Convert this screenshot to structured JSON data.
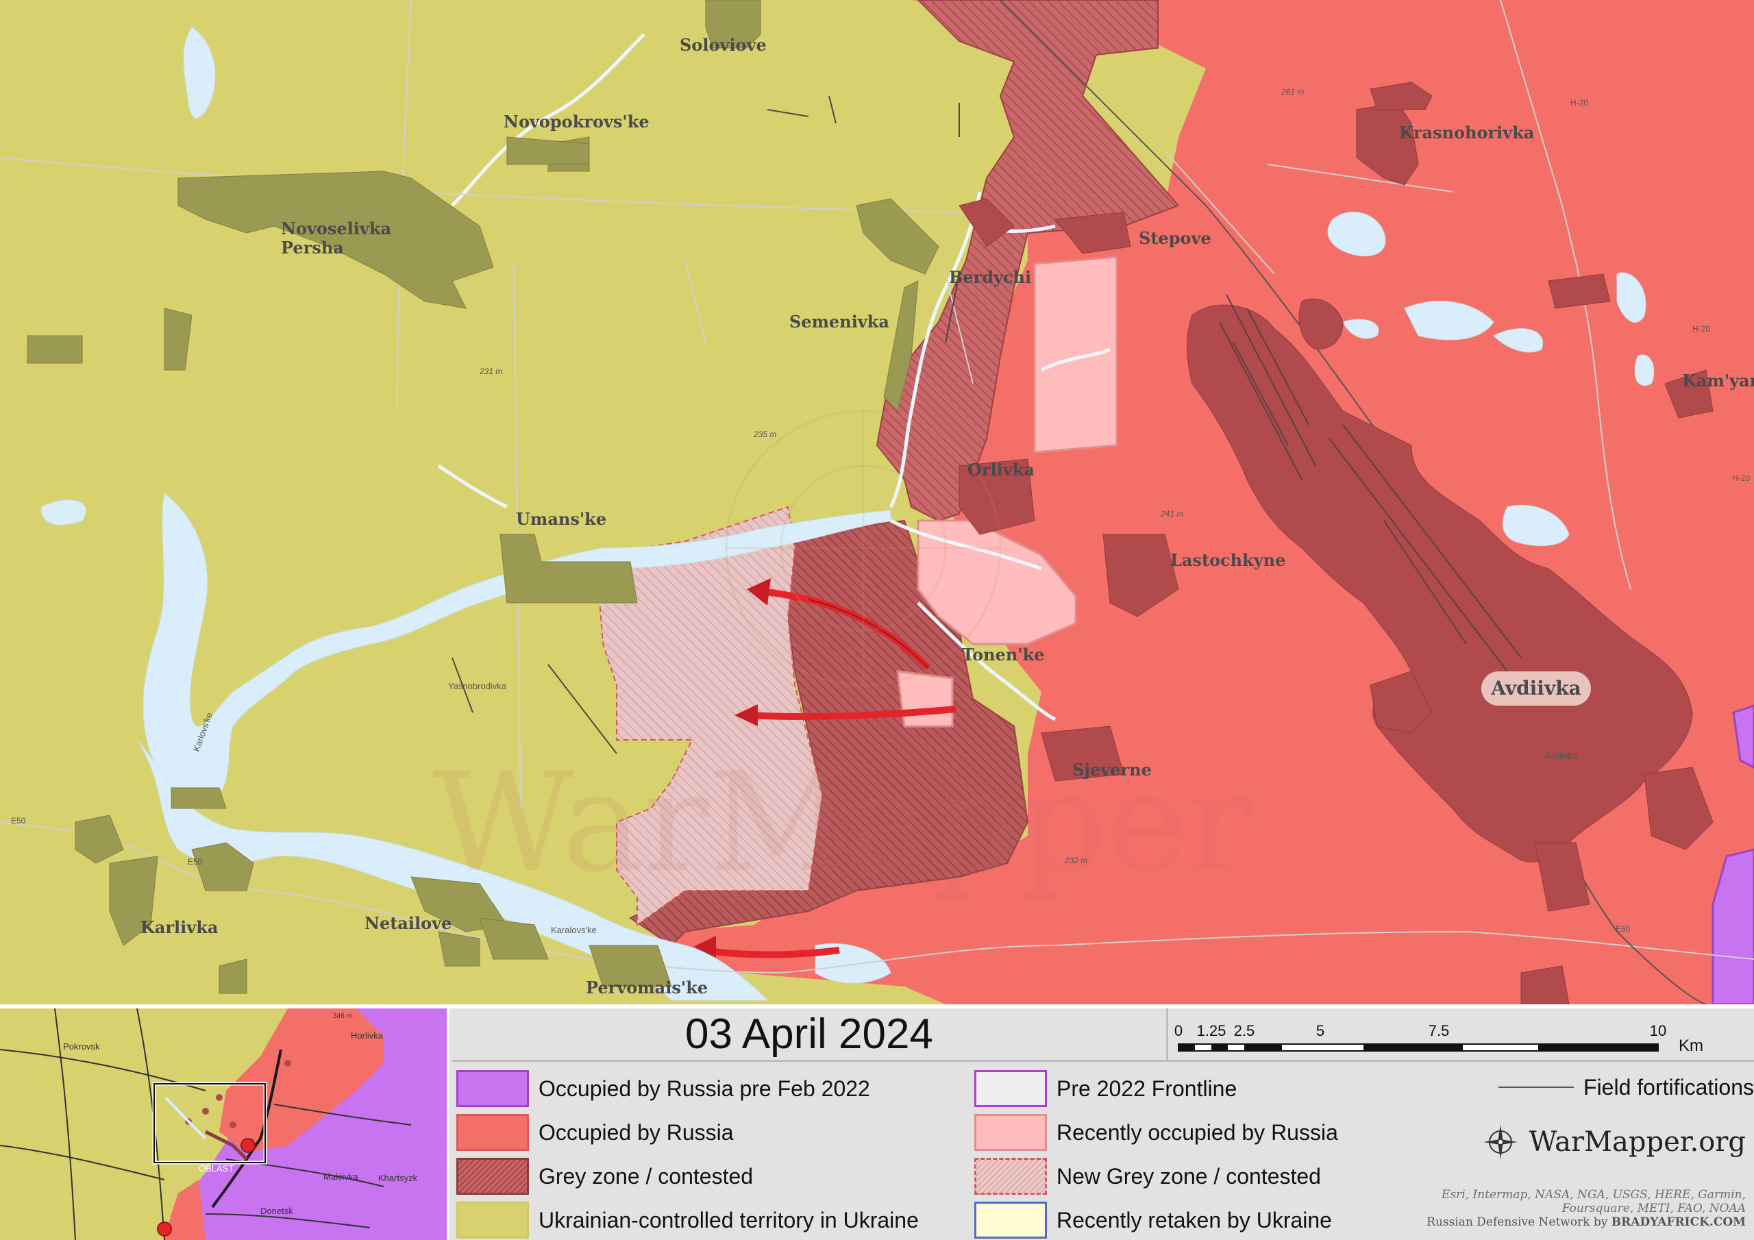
{
  "date": "03 April 2024",
  "scale_bar": {
    "ticks": [
      "0",
      "1.25",
      "2.5",
      "5",
      "7.5",
      "10"
    ],
    "unit": "Km"
  },
  "legend": {
    "left": [
      {
        "label": "Occupied by Russia pre Feb 2022",
        "color": "#c873f0"
      },
      {
        "label": "Occupied by Russia",
        "color": "#f56f69"
      },
      {
        "label": "Grey zone / contested",
        "color": "#b04a4c"
      },
      {
        "label": "Ukrainian-controlled territory in Ukraine",
        "color": "#d8d26e"
      }
    ],
    "right": [
      {
        "label": "Pre 2022 Frontline",
        "color": "#b23bd6"
      },
      {
        "label": "Recently occupied by Russia",
        "color": "#ffbcbc"
      },
      {
        "label": "New Grey zone / contested",
        "color": "#dfb0b0"
      },
      {
        "label": "Recently retaken by Ukraine",
        "color": "#fffbd4"
      }
    ],
    "field_fortifications": "Field fortifications"
  },
  "brand": "WarMapper.org",
  "credits": {
    "line1": "Esri, Intermap, NASA, NGA, USGS, HERE, Garmin,",
    "line2": "Foursquare, METI, FAO, NOAA",
    "line3a": "Russian Defensive Network by",
    "line3b": "BRADYAFRICK.COM"
  },
  "watermark": "WarMapper",
  "map_labels": {
    "soloviove": "Soloviove",
    "novopokrovske": "Novopokrovs'ke",
    "novoselivka": "Novoselivka",
    "persha": "Persha",
    "semenivka": "Semenivka",
    "berdychi": "Berdychi",
    "stepove": "Stepove",
    "krasnohorivka": "Krasnohorivka",
    "kamyanka": "Kam'yan",
    "orlivka": "Orlivka",
    "umanske": "Umans'ke",
    "lastochkyne": "Lastochkyne",
    "tonenke": "Tonen'ke",
    "avdiivka": "Avdiivka",
    "avdiivka_small": "Avdiivka",
    "sjeverne": "Sjeverne",
    "karlivka": "Karlivka",
    "netailove": "Netailove",
    "pervomaiske": "Pervomais'ke",
    "yasnobrodivka": "Yasnobrodivka",
    "karlovske": "Karlovs'ke",
    "karlovske2": "Karalovs'ke",
    "e50": "E50",
    "e50b": "E50",
    "e50c": "E50",
    "h20": "H-20",
    "h20b": "H-20",
    "h20c": "H-20",
    "m231": "231 m",
    "m235": "235 m",
    "m241": "241 m",
    "m232": "232 m",
    "m261": "261 m"
  },
  "inset_labels": {
    "pokrovsk": "Pokrovsk",
    "horlivka": "Horlivka",
    "makiivka": "Makiivka",
    "khartsyzk": "Khartsyzk",
    "donetsk": "Donetsk",
    "oblast": "OBLAST",
    "elev": "346 m"
  }
}
